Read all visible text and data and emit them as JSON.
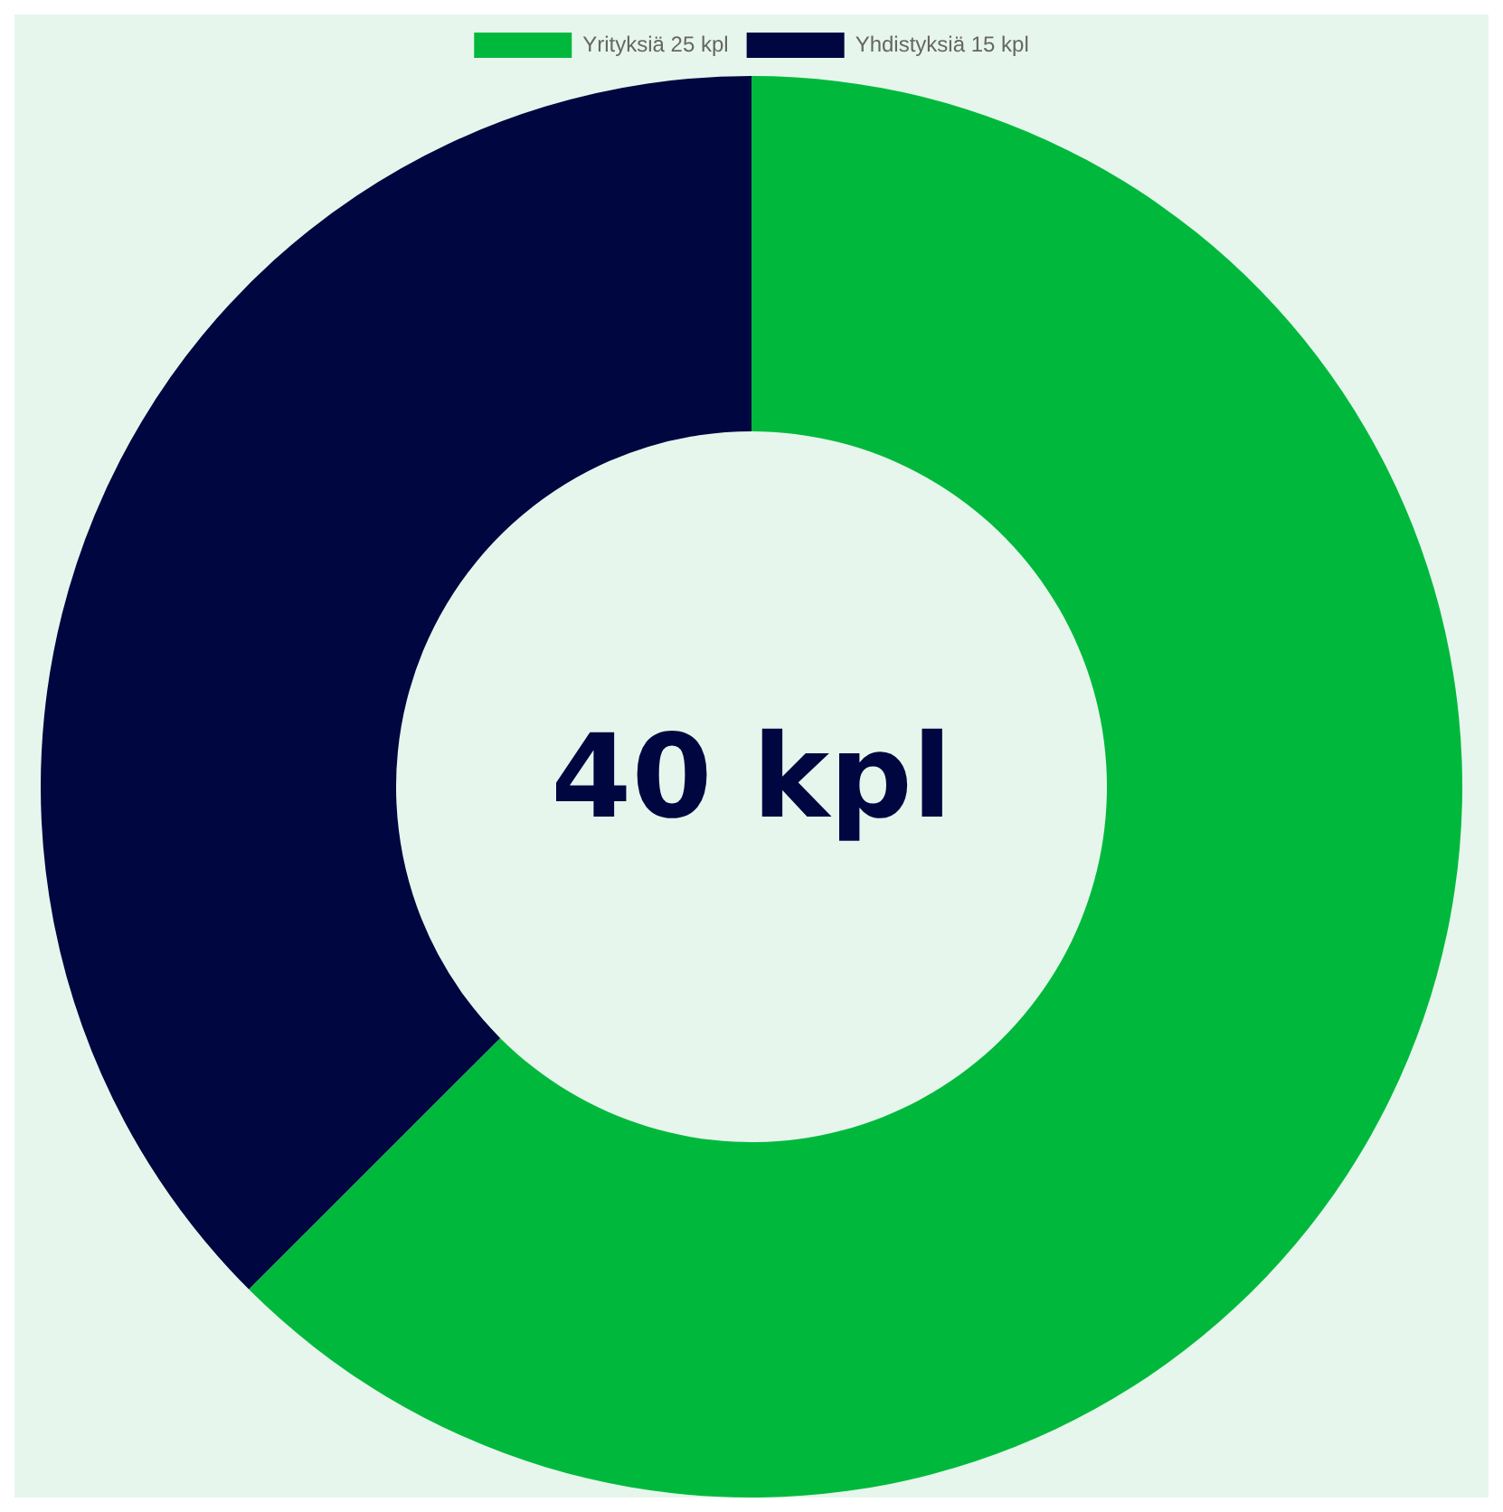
{
  "chart_data": {
    "type": "donut",
    "categories": [
      "Yrityksiä 25 kpl",
      "Yhdistyksiä 15 kpl"
    ],
    "values": [
      25,
      15
    ],
    "colors": [
      "#00b93c",
      "#000640"
    ],
    "legend": "top",
    "annotations": [
      "40 kpl"
    ]
  }
}
